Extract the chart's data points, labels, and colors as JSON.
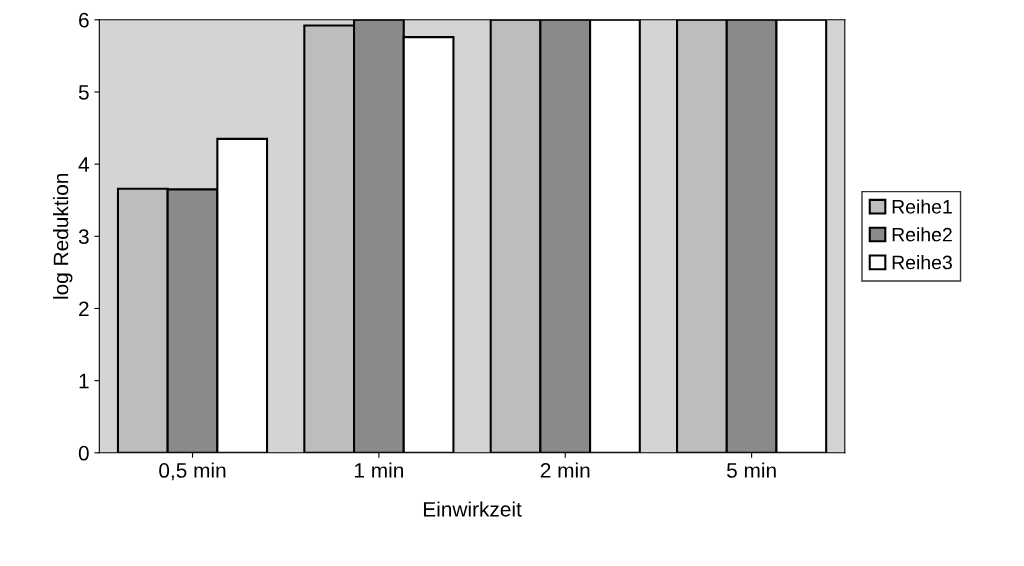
{
  "chart_data": {
    "type": "bar",
    "xlabel": "Einwirkzeit",
    "ylabel": "log Reduktion",
    "categories": [
      "0,5 min",
      "1 min",
      "2 min",
      "5 min"
    ],
    "series": [
      {
        "name": "Reihe1",
        "color": "#bdbdbd",
        "values": [
          3.66,
          5.92,
          6,
          6
        ]
      },
      {
        "name": "Reihe2",
        "color": "#8a8a8a",
        "values": [
          3.65,
          6,
          6,
          6
        ]
      },
      {
        "name": "Reihe3",
        "color": "#ffffff",
        "values": [
          4.35,
          5.76,
          6,
          6
        ]
      }
    ],
    "ylim": [
      0,
      6
    ],
    "yticks": [
      0,
      1,
      2,
      3,
      4,
      5,
      6
    ],
    "grid": false,
    "legend": "right"
  }
}
